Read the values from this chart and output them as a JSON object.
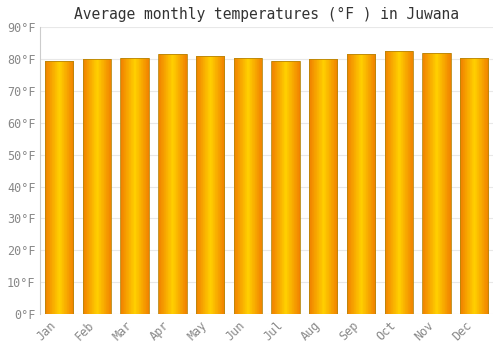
{
  "title": "Average monthly temperatures (°F ) in Juwana",
  "months": [
    "Jan",
    "Feb",
    "Mar",
    "Apr",
    "May",
    "Jun",
    "Jul",
    "Aug",
    "Sep",
    "Oct",
    "Nov",
    "Dec"
  ],
  "values": [
    79.5,
    80.0,
    80.5,
    81.5,
    81.0,
    80.5,
    79.5,
    80.0,
    81.5,
    82.5,
    82.0,
    80.5
  ],
  "bar_color_center": "#FFD000",
  "bar_color_edge": "#F08000",
  "bar_border_color": "#B8860B",
  "ylim": [
    0,
    90
  ],
  "ytick_interval": 10,
  "plot_bg_color": "#ffffff",
  "fig_bg_color": "#ffffff",
  "grid_color": "#e8e8e8",
  "title_fontsize": 10.5,
  "tick_fontsize": 8.5,
  "tick_label_color": "#888888",
  "font_family": "monospace"
}
